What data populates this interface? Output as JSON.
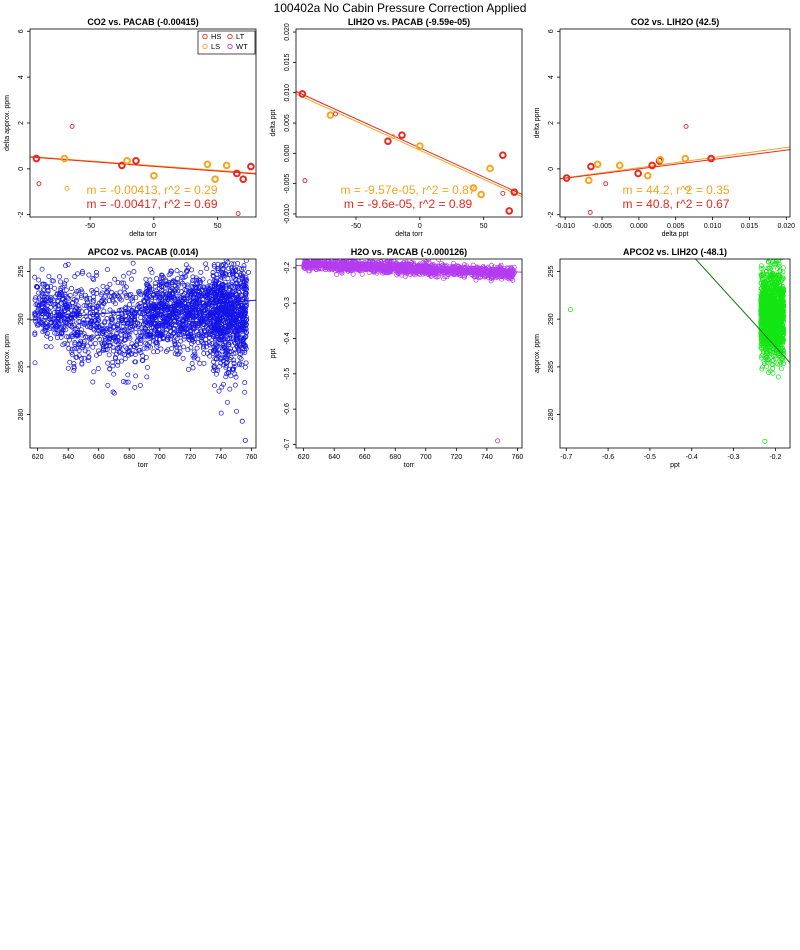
{
  "suptitle": "100402a   No Cabin Pressure Correction Applied",
  "chart_data": [
    {
      "type": "scatter",
      "title": "CO2 vs. PACAB (-0.00415)",
      "xlabel": "delta torr",
      "ylabel": "delta approx. ppm",
      "xlim": [
        -97,
        80
      ],
      "ylim": [
        -2.1,
        6.1
      ],
      "xticks": [
        -50,
        0,
        50
      ],
      "yticks": [
        -2,
        0,
        2,
        4,
        6
      ],
      "ytick_labels_rotated": true,
      "legend": {
        "placement": "top-right",
        "entries": [
          {
            "label": "HS",
            "color": "#e8281e"
          },
          {
            "label": "LT",
            "color": "#e8281e"
          },
          {
            "label": "LS",
            "color": "#f5a51e"
          },
          {
            "label": "WT",
            "color": "#b43cf0"
          }
        ]
      },
      "series": [
        {
          "name": "HS",
          "color": "#e8281e",
          "bold": true,
          "points": [
            [
              -92,
              0.45
            ],
            [
              -25,
              0.15
            ],
            [
              -14,
              0.35
            ],
            [
              65,
              -0.2
            ],
            [
              70,
              -0.45
            ],
            [
              76,
              0.1
            ]
          ]
        },
        {
          "name": "LS",
          "color": "#f5a51e",
          "bold": true,
          "points": [
            [
              -70,
              0.45
            ],
            [
              -21,
              0.35
            ],
            [
              0,
              -0.3
            ],
            [
              42,
              0.2
            ],
            [
              48,
              -0.45
            ],
            [
              57,
              0.15
            ]
          ]
        },
        {
          "name": "LT",
          "color": "#e8281e",
          "bold": false,
          "points": [
            [
              -64,
              1.85
            ],
            [
              -90,
              -0.65
            ],
            [
              66,
              -1.95
            ]
          ]
        },
        {
          "name": "",
          "color": "#f5a51e",
          "bold": false,
          "points": [
            [
              -68,
              -0.85
            ]
          ]
        }
      ],
      "lines": [
        {
          "color": "#f5a51e",
          "slope": -0.00413,
          "intercept": 0.14
        },
        {
          "color": "#e8281e",
          "slope": -0.00417,
          "intercept": 0.11
        }
      ],
      "annotations": [
        {
          "text": "m = -0.00413, r^2 = 0.29",
          "color": "#f5a51e"
        },
        {
          "text": "m = -0.00417, r^2 = 0.69",
          "color": "#e8281e"
        }
      ]
    },
    {
      "type": "scatter",
      "title": "LIH2O vs. PACAB (-9.59e-05)",
      "xlabel": "delta torr",
      "ylabel": "delta ppt",
      "xlim": [
        -97,
        80
      ],
      "ylim": [
        -0.0105,
        0.0205
      ],
      "xticks": [
        -50,
        0,
        50
      ],
      "yticks": [
        -0.01,
        -0.005,
        0.0,
        0.005,
        0.01,
        0.015,
        0.02
      ],
      "ytick_labels": [
        "-0.010",
        "-0.005",
        "0.000",
        "0.005",
        "0.010",
        "0.015",
        "0.020"
      ],
      "ytick_labels_rotated": true,
      "series": [
        {
          "name": "HS",
          "color": "#e8281e",
          "bold": true,
          "points": [
            [
              -92,
              0.0098
            ],
            [
              -25,
              0.002
            ],
            [
              -14,
              0.003
            ],
            [
              65,
              -0.0003
            ],
            [
              70,
              -0.0095
            ],
            [
              74,
              -0.0064
            ]
          ]
        },
        {
          "name": "LS",
          "color": "#f5a51e",
          "bold": true,
          "points": [
            [
              -70,
              0.0063
            ],
            [
              0,
              0.0012
            ],
            [
              42,
              -0.0057
            ],
            [
              48,
              -0.0068
            ],
            [
              55,
              -0.0025
            ]
          ]
        },
        {
          "name": "LT",
          "color": "#e8281e",
          "bold": false,
          "points": [
            [
              -90,
              -0.0045
            ],
            [
              -66,
              0.0065
            ],
            [
              65,
              -0.0066
            ]
          ]
        },
        {
          "name": "",
          "color": "#f5a51e",
          "bold": false,
          "points": [
            [
              -21,
              0.0028
            ]
          ]
        }
      ],
      "lines": [
        {
          "color": "#f5a51e",
          "slope": -9.57e-05,
          "intercept": 0.0005
        },
        {
          "color": "#e8281e",
          "slope": -9.6e-05,
          "intercept": 0.0009
        }
      ],
      "annotations": [
        {
          "text": "m = -9.57e-05, r^2 = 0.87",
          "color": "#f5a51e"
        },
        {
          "text": "m = -9.6e-05, r^2 = 0.89",
          "color": "#e8281e"
        }
      ]
    },
    {
      "type": "scatter",
      "title": "CO2 vs. LIH2O (42.5)",
      "xlabel": "delta ppt",
      "ylabel": "delta ppm",
      "xlim": [
        -0.0107,
        0.0205
      ],
      "ylim": [
        -2.1,
        6.1
      ],
      "xticks": [
        -0.01,
        -0.005,
        0.0,
        0.005,
        0.01,
        0.015,
        0.02
      ],
      "xtick_labels": [
        "-0.010",
        "-0.005",
        "0.000",
        "0.005",
        "0.010",
        "0.015",
        "0.020"
      ],
      "yticks": [
        -2,
        0,
        2,
        4,
        6
      ],
      "ytick_labels_rotated": true,
      "series": [
        {
          "name": "HS",
          "color": "#e8281e",
          "bold": true,
          "points": [
            [
              -0.0098,
              -0.4
            ],
            [
              -0.0065,
              0.1
            ],
            [
              -0.0001,
              -0.2
            ],
            [
              0.0018,
              0.15
            ],
            [
              0.0028,
              0.35
            ],
            [
              0.0098,
              0.45
            ]
          ]
        },
        {
          "name": "LS",
          "color": "#f5a51e",
          "bold": true,
          "points": [
            [
              -0.0068,
              -0.5
            ],
            [
              -0.0056,
              0.2
            ],
            [
              -0.0026,
              0.15
            ],
            [
              0.0012,
              -0.3
            ],
            [
              0.0029,
              0.4
            ],
            [
              0.0063,
              0.45
            ]
          ]
        },
        {
          "name": "LT",
          "color": "#e8281e",
          "bold": false,
          "points": [
            [
              -0.0066,
              -1.9
            ],
            [
              -0.0045,
              -0.65
            ],
            [
              0.0064,
              1.85
            ]
          ]
        },
        {
          "name": "",
          "color": "#f5a51e",
          "bold": false,
          "points": [
            [
              0.0066,
              -0.85
            ]
          ]
        }
      ],
      "lines": [
        {
          "color": "#f5a51e",
          "slope": 44.2,
          "intercept": 0.05
        },
        {
          "color": "#e8281e",
          "slope": 40.8,
          "intercept": 0.0
        }
      ],
      "annotations": [
        {
          "text": "m = 44.2, r^2 = 0.35",
          "color": "#f5a51e"
        },
        {
          "text": "m = 40.8, r^2 = 0.67",
          "color": "#e8281e"
        }
      ]
    },
    {
      "type": "scatter",
      "title": "APCO2 vs. PACAB (0.014)",
      "xlabel": "torr",
      "ylabel": "approx. ppm",
      "xlim": [
        615,
        763
      ],
      "ylim": [
        276.5,
        296.3
      ],
      "xticks": [
        620,
        640,
        660,
        680,
        700,
        720,
        740,
        760
      ],
      "yticks": [
        280,
        285,
        290,
        295
      ],
      "ytick_labels_rotated": true,
      "color": "#1414e6",
      "trend": {
        "slope": 0.014,
        "intercept": 281.3
      },
      "density": [
        {
          "from": 618,
          "to": 640,
          "center": 291.0,
          "spread": 1.6,
          "count": 240
        },
        {
          "from": 640,
          "to": 690,
          "center": 289.2,
          "spread": 2.4,
          "count": 520
        },
        {
          "from": 690,
          "to": 735,
          "center": 290.6,
          "spread": 2.0,
          "count": 900
        },
        {
          "from": 735,
          "to": 757,
          "center": 290.3,
          "spread": 3.0,
          "count": 800
        }
      ],
      "sample_points": [
        [
          756,
          277.3
        ],
        [
          754,
          279.3
        ],
        [
          634,
          289.5
        ],
        [
          758,
          294.9
        ]
      ]
    },
    {
      "type": "scatter",
      "title": "H2O vs. PACAB (-0.000126)",
      "xlabel": "torr",
      "ylabel": "ppt",
      "xlim": [
        615,
        763
      ],
      "ylim": [
        -0.71,
        -0.175
      ],
      "xticks": [
        620,
        640,
        660,
        680,
        700,
        720,
        740,
        760
      ],
      "yticks": [
        -0.7,
        -0.6,
        -0.5,
        -0.4,
        -0.3,
        -0.2
      ],
      "ytick_labels_rotated": true,
      "color": "#b43cf0",
      "trend": {
        "slope": -0.000126,
        "intercept": -0.116
      },
      "density": [
        {
          "from": 620,
          "to": 758,
          "center_start": -0.19,
          "center_end": -0.215,
          "spread": 0.008,
          "count": 1500
        }
      ],
      "sample_points": [
        [
          747,
          -0.69
        ],
        [
          756,
          -0.23
        ],
        [
          757,
          -0.235
        ]
      ]
    },
    {
      "type": "scatter",
      "title": "APCO2 vs. LIH2O (-48.1)",
      "xlabel": "ppt",
      "ylabel": "approx. ppm",
      "xlim": [
        -0.715,
        -0.165
      ],
      "ylim": [
        276.5,
        296.3
      ],
      "xticks": [
        -0.7,
        -0.6,
        -0.5,
        -0.4,
        -0.3,
        -0.2
      ],
      "yticks": [
        280,
        285,
        290,
        295
      ],
      "ytick_labels_rotated": true,
      "color": "#14e614",
      "trend_color": "#0a7a0a",
      "trend": {
        "slope": -48.1,
        "intercept": 277.5
      },
      "density": [
        {
          "from": -0.235,
          "to": -0.18,
          "center": 290.4,
          "spread": 2.2,
          "count": 1300
        }
      ],
      "sample_points": [
        [
          -0.69,
          291.0
        ],
        [
          -0.225,
          277.2
        ],
        [
          -0.2,
          295.8
        ]
      ]
    }
  ]
}
